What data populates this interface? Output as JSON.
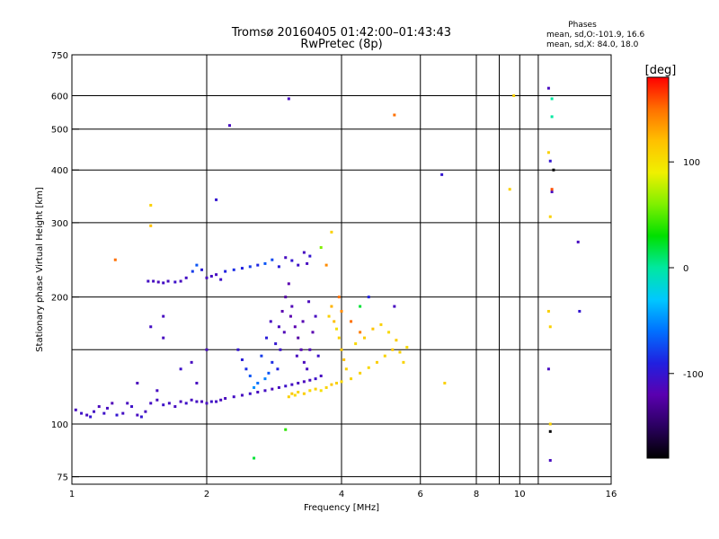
{
  "chart_data": {
    "type": "scatter",
    "title": "Tromsø 20160405 01:42:00–01:43:43",
    "subtitle": "RwPretec (8p)",
    "xlabel": "Frequency [MHz]",
    "ylabel": "Stationary phase Virtual Height [km]",
    "x_scale": "log",
    "y_scale": "log",
    "xlim": [
      1,
      16
    ],
    "ylim": [
      72,
      750
    ],
    "x_ticks": [
      1,
      2,
      4,
      6,
      8,
      10,
      16
    ],
    "x_grid_extra": [
      9,
      11
    ],
    "y_ticks": [
      75,
      100,
      200,
      300,
      400,
      500,
      600,
      750
    ],
    "y_grid_extra": [
      150
    ],
    "grid": true,
    "info": {
      "heading": "Phases",
      "line1": "mean, sd,O:-101.9, 16.6",
      "line2": "mean, sd,X:  84.0, 18.0"
    },
    "colorbar": {
      "label": "[deg]",
      "ticks": [
        100,
        0,
        -100
      ],
      "range": [
        -180,
        180
      ],
      "stops": [
        "#000000",
        "#2a0060",
        "#5a00b0",
        "#2020e0",
        "#0070ff",
        "#00c8ff",
        "#00e8a0",
        "#00e000",
        "#80f000",
        "#f0f000",
        "#ffc000",
        "#ff7000",
        "#ff0000"
      ]
    },
    "series": [
      {
        "points": [
          [
            1.02,
            108,
            -110
          ],
          [
            1.05,
            106,
            -105
          ],
          [
            1.08,
            105,
            -110
          ],
          [
            1.1,
            104,
            -100
          ],
          [
            1.12,
            107,
            -108
          ],
          [
            1.15,
            110,
            -112
          ],
          [
            1.18,
            106,
            -105
          ],
          [
            1.2,
            109,
            -110
          ],
          [
            1.23,
            112,
            -115
          ],
          [
            1.26,
            105,
            -100
          ],
          [
            1.3,
            106,
            -108
          ],
          [
            1.33,
            112,
            -110
          ],
          [
            1.36,
            110,
            -105
          ],
          [
            1.4,
            105,
            -110
          ],
          [
            1.43,
            104,
            -100
          ],
          [
            1.46,
            107,
            -110
          ],
          [
            1.5,
            112,
            -108
          ],
          [
            1.55,
            114,
            -110
          ],
          [
            1.6,
            111,
            -105
          ],
          [
            1.65,
            112,
            -108
          ],
          [
            1.7,
            110,
            -110
          ],
          [
            1.75,
            113,
            -112
          ],
          [
            1.8,
            112,
            -105
          ],
          [
            1.85,
            114,
            -110
          ],
          [
            1.9,
            113,
            -108
          ],
          [
            1.95,
            113,
            -112
          ],
          [
            2.0,
            112,
            -110
          ],
          [
            2.05,
            113,
            -105
          ],
          [
            2.1,
            113,
            -108
          ],
          [
            2.15,
            114,
            -110
          ],
          [
            2.2,
            115,
            -112
          ],
          [
            2.3,
            116,
            -108
          ],
          [
            2.4,
            117,
            -110
          ],
          [
            2.5,
            118,
            -105
          ],
          [
            2.6,
            119,
            -110
          ],
          [
            2.7,
            120,
            -108
          ],
          [
            2.8,
            121,
            -112
          ],
          [
            2.9,
            122,
            -110
          ],
          [
            3.0,
            123,
            -105
          ],
          [
            3.1,
            124,
            -108
          ],
          [
            3.2,
            125,
            -110
          ],
          [
            3.3,
            126,
            -112
          ],
          [
            3.4,
            127,
            -110
          ],
          [
            3.5,
            128,
            -105
          ]
        ]
      },
      {
        "points": [
          [
            1.48,
            218,
            -108
          ],
          [
            1.52,
            218,
            -110
          ],
          [
            1.56,
            217,
            -112
          ],
          [
            1.6,
            216,
            -108
          ],
          [
            1.64,
            218,
            -110
          ],
          [
            1.7,
            217,
            -105
          ],
          [
            1.75,
            218,
            -110
          ],
          [
            1.8,
            222,
            -108
          ],
          [
            1.86,
            230,
            -80
          ],
          [
            1.9,
            238,
            -70
          ],
          [
            1.95,
            232,
            -95
          ],
          [
            2.0,
            222,
            -110
          ],
          [
            2.05,
            224,
            -108
          ],
          [
            2.1,
            226,
            -110
          ],
          [
            2.15,
            220,
            -105
          ],
          [
            2.2,
            230,
            -90
          ],
          [
            2.3,
            232,
            -85
          ],
          [
            2.4,
            234,
            -90
          ],
          [
            2.5,
            236,
            -80
          ],
          [
            2.6,
            238,
            -88
          ],
          [
            2.7,
            240,
            -70
          ],
          [
            2.8,
            245,
            -75
          ],
          [
            2.9,
            236,
            -95
          ],
          [
            3.0,
            248,
            -110
          ],
          [
            3.1,
            244,
            -100
          ],
          [
            3.2,
            238,
            -105
          ],
          [
            3.35,
            240,
            -110
          ]
        ]
      },
      {
        "points": [
          [
            2.6,
            125,
            -60
          ],
          [
            2.7,
            128,
            -55
          ],
          [
            2.75,
            132,
            -70
          ],
          [
            2.8,
            140,
            -85
          ],
          [
            2.85,
            155,
            -100
          ],
          [
            2.9,
            170,
            -110
          ],
          [
            2.95,
            185,
            -120
          ],
          [
            3.0,
            200,
            -125
          ],
          [
            3.05,
            215,
            -120
          ],
          [
            3.1,
            190,
            -115
          ],
          [
            3.15,
            170,
            -120
          ],
          [
            3.2,
            160,
            -125
          ],
          [
            3.25,
            150,
            -118
          ],
          [
            3.3,
            140,
            -112
          ],
          [
            3.35,
            135,
            -110
          ],
          [
            3.4,
            150,
            -115
          ],
          [
            3.45,
            165,
            -120
          ],
          [
            3.5,
            180,
            -110
          ],
          [
            3.55,
            145,
            -105
          ],
          [
            3.6,
            130,
            -110
          ],
          [
            2.65,
            145,
            -80
          ],
          [
            2.72,
            160,
            -95
          ],
          [
            2.78,
            175,
            -110
          ],
          [
            2.88,
            135,
            -90
          ],
          [
            2.92,
            150,
            -105
          ],
          [
            2.98,
            165,
            -115
          ],
          [
            3.08,
            180,
            -120
          ],
          [
            3.18,
            145,
            -110
          ],
          [
            3.28,
            175,
            -118
          ],
          [
            3.38,
            195,
            -112
          ],
          [
            2.5,
            130,
            -70
          ],
          [
            2.55,
            122,
            -50
          ],
          [
            2.45,
            135,
            -85
          ],
          [
            2.4,
            142,
            -95
          ],
          [
            2.35,
            150,
            -100
          ],
          [
            1.85,
            140,
            -110
          ],
          [
            1.75,
            135,
            -105
          ],
          [
            1.6,
            160,
            -110
          ],
          [
            1.5,
            170,
            -108
          ],
          [
            1.4,
            125,
            -112
          ],
          [
            1.55,
            120,
            -110
          ]
        ]
      },
      {
        "points": [
          [
            3.05,
            116,
            110
          ],
          [
            3.1,
            118,
            115
          ],
          [
            3.15,
            117,
            105
          ],
          [
            3.2,
            119,
            108
          ],
          [
            3.3,
            118,
            112
          ],
          [
            3.4,
            120,
            105
          ],
          [
            3.5,
            121,
            110
          ],
          [
            3.6,
            120,
            100
          ],
          [
            3.7,
            122,
            108
          ],
          [
            3.8,
            124,
            115
          ],
          [
            3.9,
            125,
            110
          ],
          [
            4.0,
            126,
            105
          ],
          [
            4.2,
            128,
            108
          ],
          [
            4.4,
            132,
            110
          ],
          [
            4.6,
            136,
            105
          ],
          [
            4.8,
            140,
            112
          ],
          [
            5.0,
            145,
            108
          ],
          [
            5.2,
            150,
            115
          ],
          [
            5.4,
            148,
            110
          ],
          [
            5.6,
            152,
            105
          ],
          [
            3.85,
            175,
            120
          ],
          [
            3.9,
            168,
            100
          ],
          [
            3.95,
            160,
            110
          ],
          [
            4.0,
            150,
            115
          ],
          [
            4.05,
            142,
            120
          ],
          [
            4.1,
            135,
            110
          ],
          [
            4.3,
            155,
            105
          ],
          [
            4.5,
            160,
            112
          ],
          [
            4.7,
            168,
            118
          ],
          [
            4.9,
            172,
            110
          ],
          [
            5.1,
            165,
            105
          ],
          [
            5.3,
            158,
            112
          ],
          [
            5.5,
            140,
            108
          ],
          [
            3.75,
            180,
            110
          ],
          [
            3.8,
            190,
            125
          ],
          [
            4.0,
            185,
            140
          ],
          [
            4.2,
            175,
            150
          ],
          [
            4.4,
            165,
            145
          ]
        ]
      },
      {
        "points": [
          [
            3.3,
            255,
            -110
          ],
          [
            3.4,
            250,
            -100
          ],
          [
            3.6,
            262,
            60
          ],
          [
            3.7,
            238,
            140
          ],
          [
            3.8,
            285,
            110
          ],
          [
            3.95,
            200,
            150
          ],
          [
            4.4,
            190,
            20
          ],
          [
            4.6,
            200,
            -90
          ],
          [
            5.25,
            190,
            -110
          ],
          [
            5.25,
            540,
            150
          ],
          [
            3.05,
            590,
            -110
          ],
          [
            2.25,
            510,
            -110
          ],
          [
            2.1,
            340,
            -100
          ],
          [
            1.5,
            330,
            110
          ],
          [
            1.5,
            295,
            120
          ],
          [
            1.25,
            245,
            150
          ],
          [
            6.7,
            390,
            -100
          ],
          [
            6.8,
            125,
            110
          ],
          [
            9.5,
            360,
            110
          ],
          [
            9.7,
            600,
            110
          ],
          [
            11.6,
            625,
            -110
          ],
          [
            11.8,
            590,
            0
          ],
          [
            11.8,
            535,
            0
          ],
          [
            11.6,
            440,
            110
          ],
          [
            11.7,
            420,
            -100
          ],
          [
            11.9,
            400,
            -180
          ],
          [
            11.8,
            355,
            -110
          ],
          [
            11.8,
            360,
            160
          ],
          [
            13.5,
            270,
            -110
          ],
          [
            13.6,
            185,
            -100
          ],
          [
            11.7,
            310,
            110
          ],
          [
            11.6,
            185,
            110
          ],
          [
            11.7,
            170,
            110
          ],
          [
            11.6,
            135,
            -110
          ],
          [
            11.7,
            100,
            110
          ],
          [
            11.7,
            96,
            -180
          ],
          [
            11.7,
            82,
            -110
          ],
          [
            3.0,
            97,
            40
          ],
          [
            2.55,
            83,
            20
          ],
          [
            1.9,
            125,
            -110
          ],
          [
            2.0,
            150,
            -110
          ],
          [
            1.6,
            180,
            -110
          ]
        ]
      }
    ]
  }
}
